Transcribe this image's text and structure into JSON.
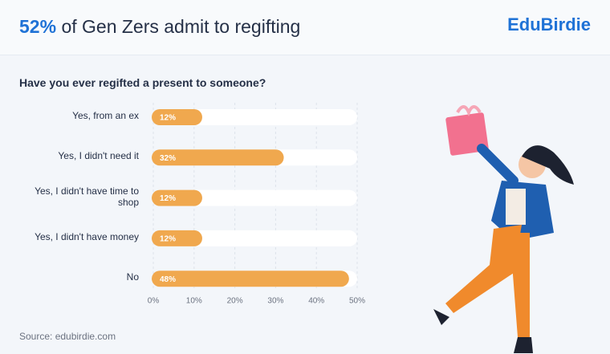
{
  "chart_data": {
    "type": "bar",
    "orientation": "horizontal",
    "title_highlight": "52%",
    "title": "of Gen Zers admit to regifting",
    "brand": "EduBirdie",
    "subtitle": "Have you ever regifted a present to someone?",
    "categories": [
      "Yes, from an ex",
      "Yes, I didn't need it",
      "Yes, I didn't have time to shop",
      "Yes, I didn't have money",
      "No"
    ],
    "values": [
      12,
      32,
      12,
      12,
      48
    ],
    "value_labels": [
      "12%",
      "32%",
      "12%",
      "12%",
      "48%"
    ],
    "color": "#f0a84e",
    "xlim": [
      0,
      50
    ],
    "xticks": [
      {
        "value": 0,
        "label": "0%"
      },
      {
        "value": 10,
        "label": "10%"
      },
      {
        "value": 20,
        "label": "20%"
      },
      {
        "value": 30,
        "label": "30%"
      },
      {
        "value": 40,
        "label": "40%"
      },
      {
        "value": 50,
        "label": "50%"
      }
    ],
    "grid": true,
    "source": "Source: edubirdie.com"
  }
}
